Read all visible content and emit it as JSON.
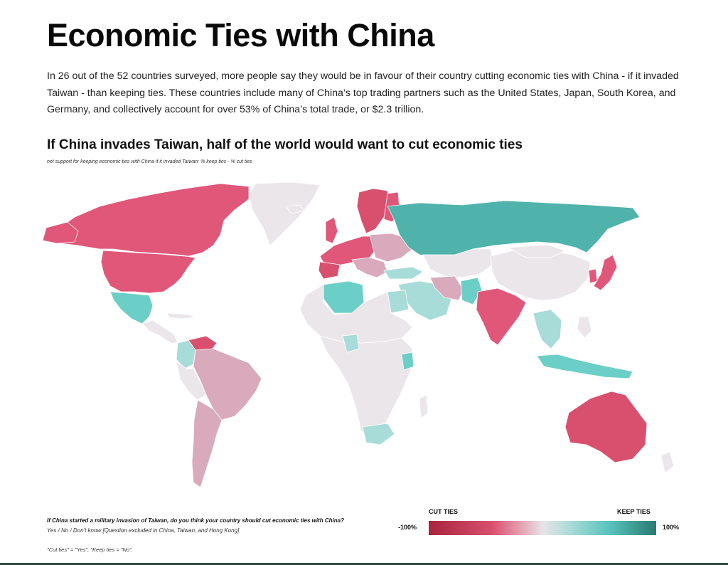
{
  "header": {
    "title": "Economic Ties with China",
    "intro": "In 26 out of the 52 countries surveyed, more people say they would be in favour of their country cutting economic ties with China - if it invaded Taiwan - than keeping ties. These countries include many of China’s top trading partners such as the United States, Japan, South Korea, and Germany, and collectively account for over 53% of China’s total trade, or $2.3 trillion."
  },
  "map": {
    "title": "If China invades Taiwan, half of the world would want to cut economic ties",
    "subtitle": "net support for keeping economic ties with China if it invaded Taiwan: % keep ties - % cut ties",
    "colors": {
      "strong_cut": "#d9506f",
      "cut": "#e0577a",
      "mild_cut": "#d8aabb",
      "neutral": "#ebe6ea",
      "mild_keep": "#a8dcd8",
      "keep": "#6ccfc7",
      "strong_keep": "#4fb3ab"
    }
  },
  "footer": {
    "question": "If China started a military invasion of Taiwan, do you think your country should cut economic ties with China?",
    "options": "Yes / No / Don't know   [Question excluded in China, Taiwan, and Hong Kong]",
    "note": "\"Cut ties\" = \"Yes\", \"Keep ties = \"No\"."
  },
  "legend": {
    "left_label": "CUT TIES",
    "right_label": "KEEP TIES",
    "min": "-100%",
    "max": "100%"
  }
}
